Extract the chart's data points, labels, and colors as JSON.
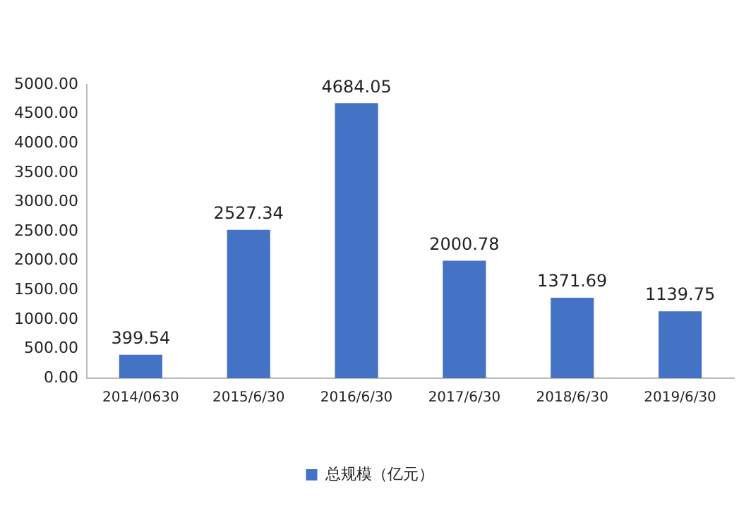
{
  "chart_data": {
    "type": "bar",
    "categories": [
      "2014/0630",
      "2015/6/30",
      "2016/6/30",
      "2017/6/30",
      "2018/6/30",
      "2019/6/30"
    ],
    "series": [
      {
        "name": "总规模（亿元）",
        "color": "#4472c4",
        "values": [
          399.54,
          2527.34,
          4684.05,
          2000.78,
          1371.69,
          1139.75
        ]
      }
    ],
    "ylim": [
      0,
      5000
    ],
    "yticks": [
      {
        "value": 0,
        "label": "0.00"
      },
      {
        "value": 500,
        "label": "500.00"
      },
      {
        "value": 1000,
        "label": "1000.00"
      },
      {
        "value": 1500,
        "label": "1500.00"
      },
      {
        "value": 2000,
        "label": "2000.00"
      },
      {
        "value": 2500,
        "label": "2500.00"
      },
      {
        "value": 3000,
        "label": "3000.00"
      },
      {
        "value": 3500,
        "label": "3500.00"
      },
      {
        "value": 4000,
        "label": "4000.00"
      },
      {
        "value": 4500,
        "label": "4500.00"
      },
      {
        "value": 5000,
        "label": "5000.00"
      }
    ],
    "grid": false,
    "legend": "bottom",
    "data_labels": true
  }
}
